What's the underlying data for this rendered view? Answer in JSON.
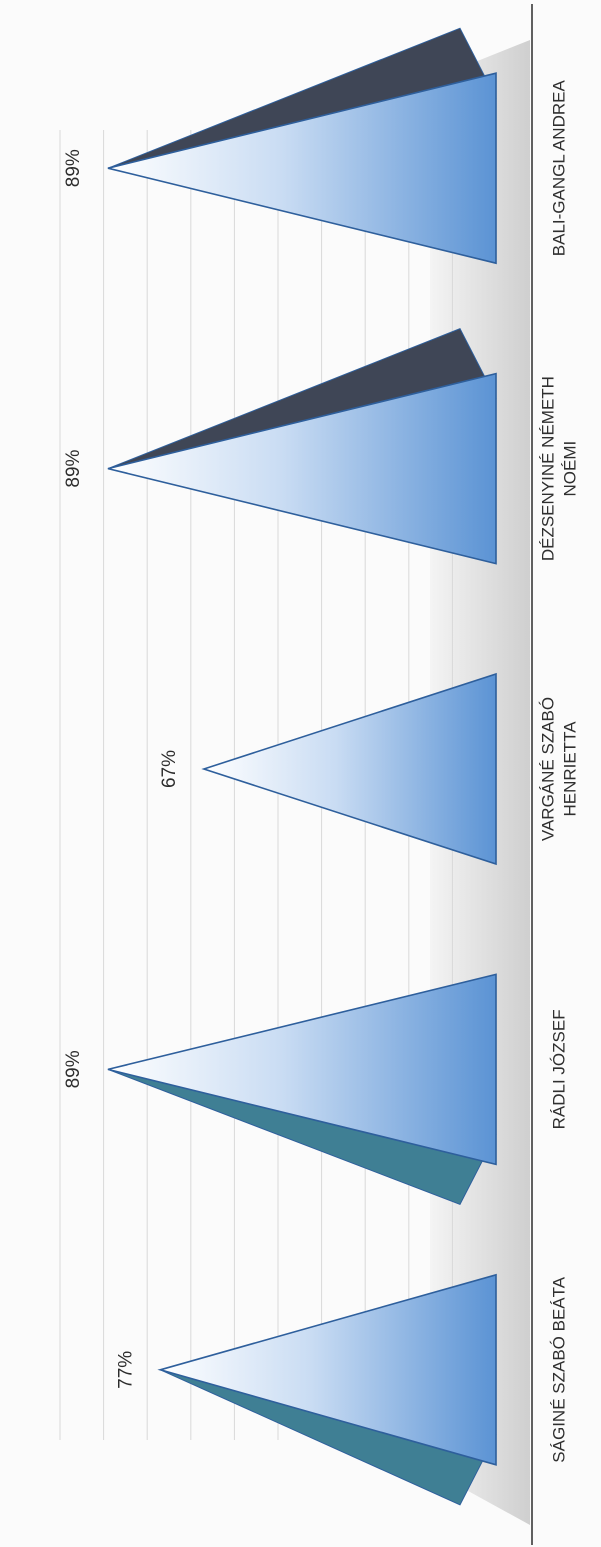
{
  "chart_data": {
    "type": "bar",
    "orientation": "horizontal",
    "bar_shape": "pyramid",
    "categories": [
      "SÁGINÉ SZABÓ BEÁTA",
      "RÁDLI JÓZSEF",
      "VARGÁNÉ SZABÓ HENRIETTA",
      "DÉZSENYINÉ NÉMETH NOÉMI",
      "BALI-GANGL ANDREA"
    ],
    "category_lines": [
      [
        "SÁGINÉ SZABÓ BEÁTA"
      ],
      [
        "RÁDLI JÓZSEF"
      ],
      [
        "VARGÁNÉ SZABÓ",
        "HENRIETTA"
      ],
      [
        "DÉZSENYINÉ NÉMETH",
        "NOÉMI"
      ],
      [
        "BALI-GANGL ANDREA"
      ]
    ],
    "values": [
      77,
      89,
      67,
      89,
      89
    ],
    "value_labels": [
      "77%",
      "89%",
      "67%",
      "89%",
      "89%"
    ],
    "unit": "%",
    "xlim": [
      0,
      100
    ],
    "grid": true,
    "legend": "none",
    "colors": {
      "face_light": "#ffffff",
      "face_mid": "#c9dcf3",
      "face_dark": "#5b93d4",
      "side_navy": "#3f4656",
      "side_teal": "#3f7f94",
      "edge": "#2e5f9c",
      "floor": "#cfcfcf",
      "axis": "#3a3a3a",
      "grid": "#d9d9d9"
    }
  }
}
